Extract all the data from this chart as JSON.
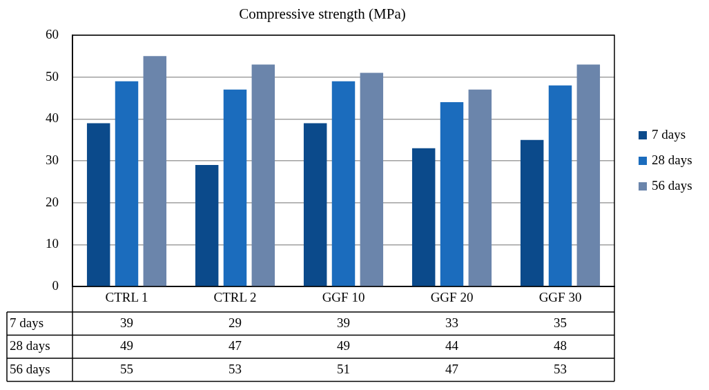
{
  "chart_data": {
    "type": "bar",
    "title": "Compressive strength (MPa)",
    "categories": [
      "CTRL 1",
      "CTRL 2",
      "GGF 10",
      "GGF 20",
      "GGF 30"
    ],
    "series": [
      {
        "name": "7 days",
        "color": "#0b4a8b",
        "values": [
          39,
          29,
          39,
          33,
          35
        ]
      },
      {
        "name": "28 days",
        "color": "#1b6cbd",
        "values": [
          49,
          47,
          49,
          44,
          48
        ]
      },
      {
        "name": "56 days",
        "color": "#6b85ab",
        "values": [
          55,
          53,
          51,
          47,
          53
        ]
      }
    ],
    "ylim": [
      0,
      60
    ],
    "yticks": [
      0,
      10,
      20,
      30,
      40,
      50,
      60
    ],
    "grid": "y",
    "legend": "right",
    "data_labels": true
  }
}
